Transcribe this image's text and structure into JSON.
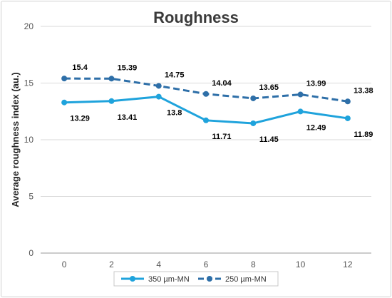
{
  "chart_data": {
    "type": "line",
    "title": "Roughness",
    "xlabel": "",
    "ylabel": "Average roughness index (au.)",
    "x": [
      0,
      2,
      4,
      6,
      8,
      10,
      12
    ],
    "xlim": [
      -1,
      13
    ],
    "ylim": [
      0,
      20
    ],
    "yticks": [
      0,
      5,
      10,
      15,
      20
    ],
    "grid": "horizontal",
    "legend_position": "bottom",
    "series": [
      {
        "name": "350 µm-MN",
        "values": [
          13.29,
          13.41,
          13.8,
          11.71,
          11.45,
          12.49,
          11.89
        ],
        "color": "#1fa3dc",
        "style": "solid",
        "label_position": "below"
      },
      {
        "name": "250 µm-MN",
        "values": [
          15.4,
          15.39,
          14.75,
          14.04,
          13.65,
          13.99,
          13.38
        ],
        "color": "#2e6fa8",
        "style": "dashed",
        "label_position": "above"
      }
    ]
  }
}
